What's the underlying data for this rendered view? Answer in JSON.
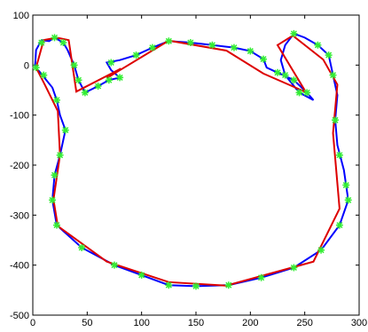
{
  "chart_data": {
    "type": "line",
    "xlim": [
      0,
      300
    ],
    "ylim": [
      -500,
      100
    ],
    "xticks": [
      0,
      50,
      100,
      150,
      200,
      250,
      300
    ],
    "yticks": [
      100,
      0,
      -100,
      -200,
      -300,
      -400,
      -500
    ],
    "series": [
      {
        "color": "#0000ff",
        "mode": "line",
        "x": [
          2,
          3,
          8,
          15,
          20,
          28,
          32,
          38,
          42,
          48,
          60,
          70,
          80,
          72,
          68,
          80,
          95,
          110,
          125,
          145,
          165,
          185,
          200,
          212,
          215,
          225,
          240,
          252,
          258,
          245,
          232,
          228,
          232,
          240,
          250,
          262,
          272,
          276,
          280,
          278,
          280,
          286,
          290,
          282,
          265,
          240,
          210,
          180,
          150,
          125,
          100,
          75,
          45,
          22,
          18,
          20,
          25,
          30,
          25,
          22,
          18,
          5,
          2
        ],
        "values": [
          -5,
          30,
          50,
          48,
          55,
          45,
          30,
          0,
          -30,
          -55,
          -42,
          -30,
          -25,
          -10,
          5,
          10,
          20,
          35,
          48,
          45,
          40,
          35,
          28,
          12,
          -5,
          -15,
          -30,
          -55,
          -70,
          -55,
          -20,
          10,
          40,
          63,
          55,
          40,
          20,
          -20,
          -60,
          -110,
          -160,
          -210,
          -270,
          -320,
          -370,
          -405,
          -425,
          -440,
          -442,
          -440,
          -420,
          -400,
          -365,
          -320,
          -270,
          -220,
          -180,
          -130,
          -100,
          -70,
          -45,
          -10,
          -5
        ]
      },
      {
        "color": "#dd0000",
        "mode": "line",
        "x": [
          3,
          10,
          22,
          33,
          40,
          81,
          68,
          125,
          178,
          212,
          251,
          225,
          239,
          267,
          280,
          276,
          282,
          258,
          178,
          125,
          68,
          23,
          19,
          25,
          23,
          11,
          3
        ],
        "values": [
          -5,
          50,
          55,
          50,
          -53,
          -7,
          -26,
          49,
          29,
          -17,
          -54,
          40,
          59,
          11,
          -39,
          -136,
          -287,
          -393,
          -441,
          -434,
          -393,
          -322,
          -269,
          -180,
          -92,
          -39,
          -5
        ]
      },
      {
        "color": "#33ee33",
        "mode": "markers",
        "x": [
          3,
          8,
          20,
          28,
          38,
          42,
          48,
          60,
          70,
          80,
          72,
          95,
          110,
          125,
          145,
          165,
          185,
          200,
          212,
          225,
          240,
          252,
          245,
          232,
          240,
          262,
          272,
          276,
          278,
          282,
          288,
          290,
          282,
          265,
          240,
          210,
          180,
          150,
          125,
          100,
          75,
          45,
          22,
          18,
          20,
          25,
          30,
          22,
          10
        ],
        "values": [
          -5,
          45,
          55,
          45,
          0,
          -30,
          -55,
          -42,
          -30,
          -25,
          5,
          20,
          35,
          48,
          45,
          40,
          35,
          28,
          12,
          -15,
          -30,
          -55,
          -55,
          -20,
          63,
          40,
          20,
          -20,
          -110,
          -180,
          -240,
          -270,
          -320,
          -370,
          -405,
          -425,
          -440,
          -442,
          -440,
          -420,
          -400,
          -365,
          -320,
          -270,
          -220,
          -180,
          -130,
          -70,
          -20
        ]
      }
    ]
  }
}
